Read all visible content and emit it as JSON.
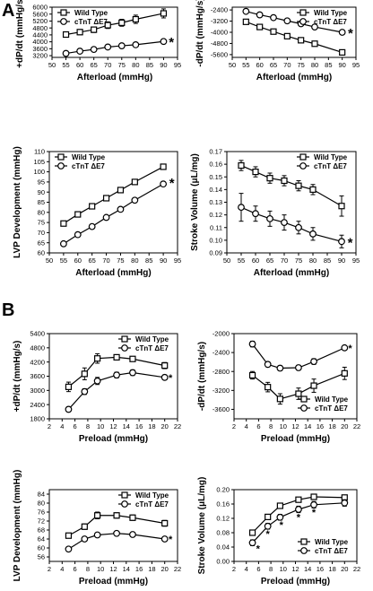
{
  "panel_letters": [
    "A",
    "B"
  ],
  "chart_data": [
    {
      "type": "line",
      "panel": "A",
      "xlabel": "Afterload (mmHg)",
      "ylabel": "+dP/dt (mmHg/s)",
      "xlim": [
        50,
        95
      ],
      "ylim": [
        3100,
        6000
      ],
      "xticks": [
        50,
        55,
        60,
        65,
        70,
        75,
        80,
        85,
        90,
        95
      ],
      "yticks": [
        3200,
        3600,
        4000,
        4400,
        4800,
        5200,
        5600,
        6000
      ],
      "legend_position": "top-left",
      "series": [
        {
          "name": "Wild Type",
          "marker": "square",
          "x": [
            55,
            60,
            65,
            70,
            75,
            80,
            90
          ],
          "values": [
            4420,
            4560,
            4700,
            4960,
            5100,
            5300,
            5640
          ],
          "errors": [
            130,
            150,
            160,
            190,
            200,
            240,
            260
          ]
        },
        {
          "name": "cTnT ΔE7",
          "marker": "circle",
          "x": [
            55,
            60,
            65,
            70,
            75,
            80,
            90
          ],
          "values": [
            3330,
            3460,
            3560,
            3700,
            3770,
            3830,
            4020
          ],
          "errors": [
            130,
            100,
            90,
            90,
            90,
            100,
            110
          ]
        }
      ],
      "annotations": [
        {
          "text": "*",
          "x": 92.8,
          "y": 4020
        }
      ]
    },
    {
      "type": "line",
      "panel": "A",
      "xlabel": "Afterload (mmHg)",
      "ylabel": "-dP/dt (mmHg/s)",
      "xlim": [
        50,
        95
      ],
      "ylim": [
        -5800,
        -2200
      ],
      "xticks": [
        50,
        55,
        60,
        65,
        70,
        75,
        80,
        85,
        90,
        95
      ],
      "yticks": [
        -2400,
        -3200,
        -4000,
        -4800,
        -5600
      ],
      "legend_position": "top-right",
      "series": [
        {
          "name": "Wild Type",
          "marker": "square",
          "x": [
            55,
            60,
            65,
            70,
            75,
            80,
            90
          ],
          "values": [
            -3250,
            -3620,
            -3950,
            -4280,
            -4570,
            -4820,
            -5440
          ],
          "errors": [
            90,
            90,
            100,
            100,
            100,
            110,
            140
          ]
        },
        {
          "name": "cTnT ΔE7",
          "marker": "circle",
          "x": [
            55,
            60,
            65,
            70,
            75,
            80,
            90
          ],
          "values": [
            -2500,
            -2750,
            -2950,
            -3180,
            -3390,
            -3620,
            -4000
          ],
          "errors": [
            60,
            70,
            70,
            80,
            90,
            100,
            140
          ]
        }
      ],
      "annotations": [
        {
          "text": "*",
          "x": 93,
          "y": -4000
        }
      ]
    },
    {
      "type": "line",
      "panel": "A",
      "xlabel": "Afterload (mmHg)",
      "ylabel": "LVP Development (mmHg)",
      "xlim": [
        50,
        95
      ],
      "ylim": [
        60,
        110
      ],
      "xticks": [
        50,
        55,
        60,
        65,
        70,
        75,
        80,
        85,
        90,
        95
      ],
      "yticks": [
        60,
        65,
        70,
        75,
        80,
        85,
        90,
        95,
        100,
        105,
        110
      ],
      "legend_position": "top-left",
      "series": [
        {
          "name": "Wild Type",
          "marker": "square",
          "x": [
            55,
            60,
            65,
            70,
            75,
            80,
            90
          ],
          "values": [
            74.5,
            79,
            83,
            87,
            91,
            95,
            102.5
          ],
          "errors": [
            0.8,
            0.8,
            0.8,
            0.8,
            0.8,
            0.8,
            0.8
          ]
        },
        {
          "name": "cTnT ΔE7",
          "marker": "circle",
          "x": [
            55,
            60,
            65,
            70,
            75,
            80,
            90
          ],
          "values": [
            64.5,
            69,
            73,
            77.5,
            81.5,
            86,
            94
          ],
          "errors": [
            0.8,
            0.8,
            0.8,
            0.8,
            0.8,
            0.8,
            0.8
          ]
        }
      ],
      "annotations": [
        {
          "text": "*",
          "x": 93,
          "y": 95
        }
      ]
    },
    {
      "type": "line",
      "panel": "A",
      "xlabel": "Afterload (mmHg)",
      "ylabel": "Stroke Volume (μL/mg)",
      "xlim": [
        50,
        95
      ],
      "ylim": [
        0.09,
        0.17
      ],
      "xticks": [
        50,
        55,
        60,
        65,
        70,
        75,
        80,
        85,
        90,
        95
      ],
      "yticks": [
        0.09,
        0.1,
        0.11,
        0.12,
        0.13,
        0.14,
        0.15,
        0.16,
        0.17
      ],
      "ytick_labels": [
        "0.09",
        "0.10",
        "0.11",
        "0.12",
        "0.13",
        "0.14",
        "0.15",
        "0.16",
        "0.17"
      ],
      "legend_position": "top-right",
      "series": [
        {
          "name": "Wild Type",
          "marker": "square",
          "x": [
            55,
            60,
            65,
            70,
            75,
            80,
            90
          ],
          "values": [
            0.159,
            0.154,
            0.149,
            0.147,
            0.143,
            0.14,
            0.127
          ],
          "errors": [
            0.004,
            0.004,
            0.004,
            0.004,
            0.004,
            0.004,
            0.008
          ]
        },
        {
          "name": "cTnT ΔE7",
          "marker": "circle",
          "x": [
            55,
            60,
            65,
            70,
            75,
            80,
            90
          ],
          "values": [
            0.126,
            0.121,
            0.117,
            0.114,
            0.11,
            0.105,
            0.099
          ],
          "errors": [
            0.011,
            0.006,
            0.006,
            0.006,
            0.005,
            0.005,
            0.005
          ]
        }
      ],
      "annotations": [
        {
          "text": "*",
          "x": 93,
          "y": 0.099
        }
      ]
    },
    {
      "type": "line",
      "panel": "B",
      "xlabel": "Preload (mmHg)",
      "ylabel": "+dP/dt (mmHg/s)",
      "xlim": [
        2,
        22
      ],
      "ylim": [
        1800,
        5400
      ],
      "xticks": [
        2,
        4,
        6,
        8,
        10,
        12,
        14,
        16,
        18,
        20,
        22
      ],
      "yticks": [
        1800,
        2400,
        3000,
        3600,
        4200,
        4800,
        5400
      ],
      "legend_position": "top-right",
      "series": [
        {
          "name": "Wild Type",
          "marker": "square",
          "x": [
            5,
            7.5,
            9.5,
            12.5,
            15,
            20
          ],
          "values": [
            3150,
            3700,
            4350,
            4400,
            4330,
            4050
          ],
          "errors": [
            200,
            250,
            200,
            90,
            90,
            130
          ]
        },
        {
          "name": "cTnT ΔE7",
          "marker": "circle",
          "x": [
            5,
            7.5,
            9.5,
            12.5,
            15,
            20
          ],
          "values": [
            2200,
            2950,
            3400,
            3650,
            3750,
            3550
          ],
          "errors": [
            100,
            120,
            150,
            120,
            120,
            100
          ]
        }
      ],
      "annotations": [
        {
          "text": "*",
          "x": 20.9,
          "y": 3550
        }
      ]
    },
    {
      "type": "line",
      "panel": "B",
      "xlabel": "Preload (mmHg)",
      "ylabel": "-dP/dt (mmHg/s)",
      "xlim": [
        2,
        22
      ],
      "ylim": [
        -3800,
        -2000
      ],
      "xticks": [
        2,
        4,
        6,
        8,
        10,
        12,
        14,
        16,
        18,
        20,
        22
      ],
      "yticks": [
        -2000,
        -2400,
        -2800,
        -3200,
        -3600
      ],
      "legend_position": "bottom-right",
      "series": [
        {
          "name": "Wild Type",
          "marker": "square",
          "x": [
            5,
            7.5,
            9.5,
            12.5,
            15,
            20
          ],
          "values": [
            -2880,
            -3130,
            -3380,
            -3270,
            -3100,
            -2840
          ],
          "errors": [
            80,
            100,
            110,
            120,
            140,
            130
          ]
        },
        {
          "name": "cTnT ΔE7",
          "marker": "circle",
          "x": [
            5,
            7.5,
            9.5,
            12.5,
            15,
            20
          ],
          "values": [
            -2220,
            -2650,
            -2730,
            -2720,
            -2590,
            -2300
          ],
          "errors": [
            60,
            50,
            50,
            50,
            60,
            40
          ]
        }
      ],
      "annotations": [
        {
          "text": "*",
          "x": 20.9,
          "y": -2300
        }
      ]
    },
    {
      "type": "line",
      "panel": "B",
      "xlabel": "Preload (mmHg)",
      "ylabel": "LVP Development (mmHg)",
      "xlim": [
        2,
        22
      ],
      "ylim": [
        54,
        86
      ],
      "xticks": [
        2,
        4,
        6,
        8,
        10,
        12,
        14,
        16,
        18,
        20,
        22
      ],
      "yticks": [
        56,
        60,
        64,
        68,
        72,
        76,
        80,
        84
      ],
      "legend_position": "top-right",
      "series": [
        {
          "name": "Wild Type",
          "marker": "square",
          "x": [
            5,
            7.5,
            9.5,
            12.5,
            15,
            20
          ],
          "values": [
            65.5,
            69.5,
            74.5,
            74.5,
            73.5,
            71
          ],
          "errors": [
            0.8,
            1.2,
            1.5,
            1.2,
            1.2,
            1.3
          ]
        },
        {
          "name": "cTnT ΔE7",
          "marker": "circle",
          "x": [
            5,
            7.5,
            9.5,
            12.5,
            15,
            20
          ],
          "values": [
            59.5,
            64,
            65.8,
            66.5,
            66,
            64
          ],
          "errors": [
            0.7,
            0.7,
            0.8,
            0.8,
            0.8,
            0.6
          ]
        }
      ],
      "annotations": [
        {
          "text": "*",
          "x": 20.9,
          "y": 64
        }
      ]
    },
    {
      "type": "line",
      "panel": "B",
      "xlabel": "Preload (mmHg)",
      "ylabel": "Stroke Volume (μL/mg)",
      "xlim": [
        2,
        22
      ],
      "ylim": [
        0.0,
        0.2
      ],
      "xticks": [
        2,
        4,
        6,
        8,
        10,
        12,
        14,
        16,
        18,
        20,
        22
      ],
      "yticks": [
        0.0,
        0.04,
        0.08,
        0.12,
        0.16,
        0.2
      ],
      "ytick_labels": [
        "0.00",
        "0.04",
        "0.08",
        "0.12",
        "0.16",
        "0.20"
      ],
      "legend_position": "bottom-right",
      "series": [
        {
          "name": "Wild Type",
          "marker": "square",
          "x": [
            5,
            7.5,
            9.5,
            12.5,
            15,
            20
          ],
          "values": [
            0.08,
            0.124,
            0.155,
            0.172,
            0.18,
            0.178
          ],
          "errors": [
            0.003,
            0.004,
            0.004,
            0.004,
            0.004,
            0.005
          ]
        },
        {
          "name": "cTnT ΔE7",
          "marker": "circle",
          "x": [
            5,
            7.5,
            9.5,
            12.5,
            15,
            20
          ],
          "values": [
            0.052,
            0.098,
            0.123,
            0.145,
            0.158,
            0.163
          ],
          "errors": [
            0.008,
            0.008,
            0.008,
            0.009,
            0.009,
            0.009
          ]
        }
      ],
      "annotations": [
        {
          "text": "*",
          "x": 5.9,
          "y": 0.036
        },
        {
          "text": "*",
          "x": 7.5,
          "y": 0.078
        },
        {
          "text": "*",
          "x": 9.7,
          "y": 0.103
        },
        {
          "text": "*",
          "x": 12.5,
          "y": 0.124
        },
        {
          "text": "*",
          "x": 15,
          "y": 0.137
        }
      ]
    }
  ]
}
